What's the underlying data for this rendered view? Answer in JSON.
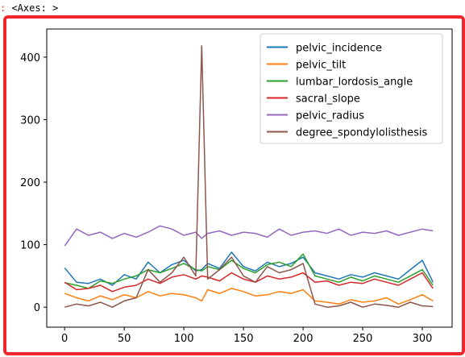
{
  "output_prompt": {
    "marker": ":",
    "text": " <Axes: >"
  },
  "chart_data": {
    "type": "line",
    "title": "",
    "xlabel": "",
    "ylabel": "",
    "xlim": [
      -15,
      325
    ],
    "ylim": [
      -32,
      445
    ],
    "xticks": [
      0,
      50,
      100,
      150,
      200,
      250,
      300
    ],
    "yticks": [
      0,
      100,
      200,
      300,
      400
    ],
    "legend_position": "top-right",
    "grid": false,
    "x": [
      0,
      10,
      20,
      30,
      40,
      50,
      60,
      70,
      80,
      90,
      100,
      110,
      115,
      120,
      130,
      140,
      150,
      160,
      170,
      180,
      190,
      200,
      210,
      220,
      230,
      240,
      250,
      260,
      270,
      280,
      290,
      300,
      309
    ],
    "series": [
      {
        "name": "pelvic_incidence",
        "color": "#1f77b4",
        "values": [
          63,
          40,
          38,
          45,
          35,
          52,
          45,
          72,
          55,
          68,
          75,
          58,
          60,
          70,
          62,
          88,
          65,
          58,
          72,
          65,
          70,
          80,
          55,
          50,
          45,
          52,
          48,
          55,
          50,
          45,
          60,
          75,
          40
        ]
      },
      {
        "name": "pelvic_tilt",
        "color": "#ff7f0e",
        "values": [
          22,
          15,
          10,
          18,
          12,
          20,
          15,
          25,
          18,
          22,
          20,
          15,
          10,
          28,
          22,
          30,
          25,
          18,
          20,
          25,
          22,
          28,
          10,
          8,
          5,
          12,
          8,
          10,
          15,
          5,
          12,
          20,
          10
        ]
      },
      {
        "name": "lumbar_lordosis_angle",
        "color": "#2ca02c",
        "values": [
          39,
          35,
          30,
          42,
          38,
          45,
          50,
          60,
          55,
          62,
          70,
          60,
          58,
          65,
          60,
          75,
          62,
          55,
          68,
          72,
          65,
          85,
          50,
          45,
          40,
          48,
          42,
          50,
          45,
          40,
          50,
          60,
          35
        ]
      },
      {
        "name": "sacral_slope",
        "color": "#d62728",
        "values": [
          40,
          28,
          30,
          35,
          25,
          32,
          35,
          45,
          38,
          48,
          52,
          45,
          50,
          48,
          42,
          55,
          45,
          40,
          50,
          45,
          48,
          55,
          40,
          42,
          35,
          40,
          38,
          45,
          40,
          35,
          45,
          55,
          30
        ]
      },
      {
        "name": "pelvic_radius",
        "color": "#9467bd",
        "values": [
          98,
          125,
          115,
          120,
          110,
          118,
          112,
          120,
          130,
          125,
          115,
          120,
          110,
          118,
          122,
          115,
          120,
          118,
          112,
          125,
          115,
          120,
          122,
          118,
          125,
          115,
          120,
          118,
          122,
          115,
          120,
          125,
          122
        ]
      },
      {
        "name": "degree_spondylolisthesis",
        "color": "#8c564b",
        "values": [
          0,
          5,
          2,
          8,
          0,
          10,
          15,
          60,
          40,
          55,
          80,
          50,
          418,
          45,
          60,
          80,
          50,
          40,
          65,
          55,
          60,
          70,
          5,
          0,
          2,
          8,
          0,
          5,
          3,
          0,
          8,
          2,
          1
        ]
      }
    ]
  }
}
